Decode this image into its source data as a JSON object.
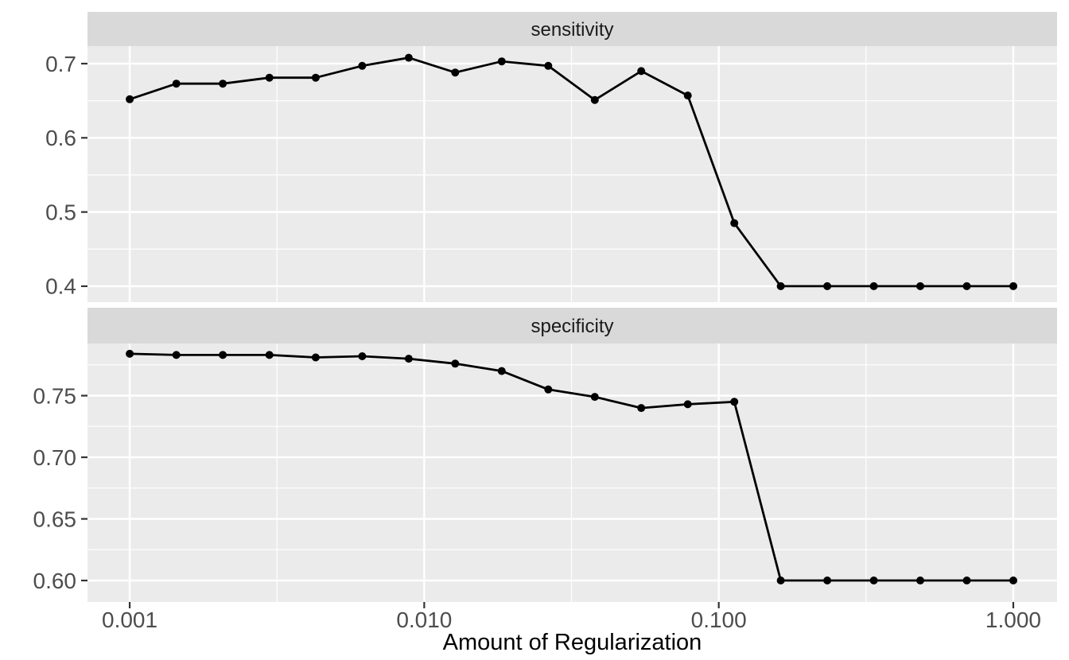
{
  "style": {
    "background": "#FFFFFF",
    "panel_bg": "#EBEBEB",
    "strip_bg": "#D9D9D9",
    "grid_color": "#FFFFFF",
    "line_color": "#000000",
    "point_color": "#000000",
    "tick_mark_color": "#333333",
    "tick_label_color": "#4D4D4D",
    "strip_text_color": "#1A1A1A",
    "axis_title_color": "#000000"
  },
  "chart_data": {
    "type": "line",
    "title": "",
    "xlabel": "Amount of Regularization",
    "ylabel": "",
    "xscale": "log10",
    "grid": true,
    "legend": false,
    "x": [
      0.001,
      0.00144,
      0.00207,
      0.00298,
      0.00428,
      0.00616,
      0.00886,
      0.01274,
      0.01833,
      0.02637,
      0.03793,
      0.05456,
      0.07848,
      0.11288,
      0.16238,
      0.23357,
      0.33598,
      0.48329,
      0.69519,
      1.0
    ],
    "xlim": [
      0.000719,
      1.408
    ],
    "xticks": [
      0.001,
      0.01,
      0.1,
      1.0
    ],
    "xtick_labels": [
      "0.001",
      "0.010",
      "0.100",
      "1.000"
    ],
    "x_minor_ticks": [
      0.00316228,
      0.0316228,
      0.316228
    ],
    "facets": [
      {
        "label": "sensitivity",
        "values": [
          0.652,
          0.673,
          0.673,
          0.681,
          0.681,
          0.697,
          0.708,
          0.688,
          0.703,
          0.697,
          0.651,
          0.69,
          0.657,
          0.485,
          0.4,
          0.4,
          0.4,
          0.4,
          0.4,
          0.4
        ],
        "yticks": [
          0.7,
          0.6,
          0.5,
          0.4
        ],
        "ytick_labels": [
          "0.7",
          "0.6",
          "0.5",
          "0.4"
        ],
        "y_minor_ticks": [
          0.65,
          0.55,
          0.45
        ],
        "ylim": [
          0.3785,
          0.7236
        ]
      },
      {
        "label": "specificity",
        "values": [
          0.784,
          0.783,
          0.783,
          0.783,
          0.781,
          0.782,
          0.78,
          0.776,
          0.77,
          0.755,
          0.749,
          0.74,
          0.743,
          0.745,
          0.6,
          0.6,
          0.6,
          0.6,
          0.6,
          0.6
        ],
        "yticks": [
          0.75,
          0.7,
          0.65,
          0.6
        ],
        "ytick_labels": [
          "0.75",
          "0.70",
          "0.65",
          "0.60"
        ],
        "y_minor_ticks": [
          0.775,
          0.725,
          0.675,
          0.625
        ],
        "ylim": [
          0.5826,
          0.7923
        ]
      }
    ]
  }
}
